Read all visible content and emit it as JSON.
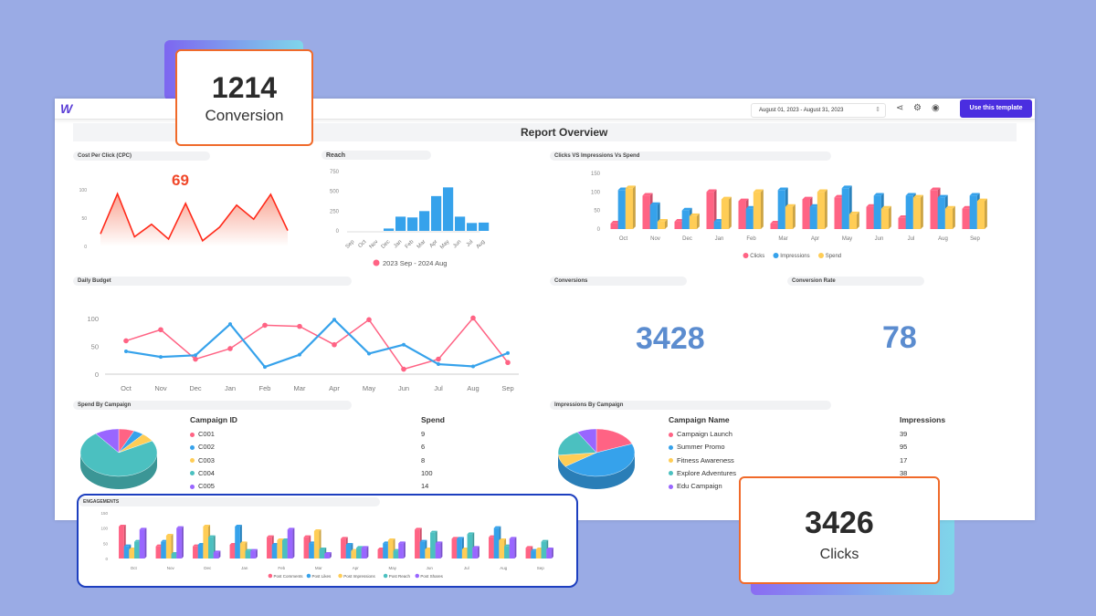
{
  "header": {
    "logo": "W",
    "date_range": "August 01, 2023 - August 31, 2023",
    "use_template_label": "Use this template",
    "report_title": "Report Overview"
  },
  "icons": {
    "share": "share-icon",
    "settings": "gear-icon",
    "preview": "eye-icon",
    "date_chevron": "chevron-updown-icon"
  },
  "colors": {
    "background": "#9aabe5",
    "accent": "#4a2ee0",
    "red": "#ff5b7a",
    "blue": "#36a2eb",
    "yellow": "#ffcd56",
    "teal": "#4bc0c0",
    "purple": "#9966ff",
    "card_border": "#f06a2a",
    "metric": "#5b8ccf"
  },
  "cards": {
    "conversion": {
      "value": "1214",
      "label": "Conversion"
    },
    "clicks": {
      "value": "3426",
      "label": "Clicks"
    }
  },
  "cpc": {
    "title": "Cost Per Click (CPC)",
    "value": "69"
  },
  "conversions": {
    "title": "Conversions",
    "value": "3428"
  },
  "conversion_rate": {
    "title": "Conversion Rate",
    "value": "78"
  },
  "chart_data": [
    {
      "id": "cpc",
      "type": "area",
      "title": "Cost Per Click (CPC)",
      "yticks": [
        "0",
        "50",
        "100"
      ],
      "ylim": [
        0,
        100
      ],
      "values": [
        22,
        93,
        17,
        39,
        13,
        76,
        10,
        34,
        73,
        48,
        92,
        28
      ],
      "color": "#ff2a1a"
    },
    {
      "id": "reach",
      "type": "bar",
      "title": "Reach",
      "categories": [
        "Sep",
        "Oct",
        "Nov",
        "Dec",
        "Jan",
        "Feb",
        "Mar",
        "Apr",
        "May",
        "Jun",
        "Jul",
        "Aug"
      ],
      "values": [
        0,
        0,
        0,
        30,
        180,
        170,
        250,
        440,
        550,
        180,
        100,
        105
      ],
      "yticks": [
        "0",
        "250",
        "500",
        "750"
      ],
      "ylim": [
        0,
        750
      ],
      "legend": "2023 Sep - 2024 Aug",
      "color": "#36a2eb"
    },
    {
      "id": "civs",
      "type": "bar",
      "title": "Clicks VS Impressions Vs Spend",
      "categories": [
        "Oct",
        "Nov",
        "Dec",
        "Jan",
        "Feb",
        "Mar",
        "Apr",
        "May",
        "Jun",
        "Jul",
        "Aug",
        "Sep"
      ],
      "yticks": [
        "0",
        "50",
        "100",
        "150"
      ],
      "ylim": [
        0,
        150
      ],
      "series": [
        {
          "name": "Clicks",
          "color": "#ff6384",
          "values": [
            15,
            90,
            20,
            100,
            75,
            15,
            80,
            85,
            60,
            30,
            105,
            55
          ]
        },
        {
          "name": "Impressions",
          "color": "#36a2eb",
          "values": [
            105,
            65,
            50,
            20,
            55,
            105,
            60,
            110,
            90,
            90,
            85,
            90
          ]
        },
        {
          "name": "Spend",
          "color": "#ffcd56",
          "values": [
            110,
            20,
            35,
            80,
            100,
            60,
            100,
            40,
            55,
            85,
            55,
            75
          ]
        }
      ]
    },
    {
      "id": "budget",
      "type": "line",
      "title": "Daily Budget",
      "categories": [
        "Oct",
        "Nov",
        "Dec",
        "Jan",
        "Feb",
        "Mar",
        "Apr",
        "May",
        "Jun",
        "Jul",
        "Aug",
        "Sep"
      ],
      "yticks": [
        "0",
        "50",
        "100"
      ],
      "ylim": [
        0,
        110
      ],
      "series": [
        {
          "color": "#ff6384",
          "values": [
            60,
            80,
            27,
            46,
            88,
            86,
            53,
            98,
            9,
            27,
            101,
            21
          ]
        },
        {
          "color": "#36a2eb",
          "values": [
            41,
            31,
            34,
            90,
            13,
            35,
            98,
            37,
            53,
            18,
            14,
            38
          ]
        }
      ]
    },
    {
      "id": "spend_pie",
      "type": "pie",
      "title": "Spend By Campaign",
      "headers": [
        "Campaign ID",
        "Spend"
      ],
      "labels": [
        "C001",
        "C002",
        "C003",
        "C004",
        "C005"
      ],
      "values": [
        9,
        6,
        8,
        100,
        14
      ],
      "display_values": [
        "9",
        "6",
        "8",
        "100",
        "14"
      ],
      "colors": [
        "#ff6384",
        "#36a2eb",
        "#ffcd56",
        "#4bc0c0",
        "#9966ff"
      ]
    },
    {
      "id": "imp_pie",
      "type": "pie",
      "title": "Impressions By Campaign",
      "headers": [
        "Campaign Name",
        "Impressions"
      ],
      "labels": [
        "Campaign Launch",
        "Summer Promo",
        "Fitness Awareness",
        "Explore Adventures",
        "Edu Campaign"
      ],
      "values": [
        39,
        95,
        17,
        38,
        17
      ],
      "display_values": [
        "39",
        "95",
        "17",
        "38",
        ""
      ],
      "colors": [
        "#ff6384",
        "#36a2eb",
        "#ffcd56",
        "#4bc0c0",
        "#9966ff"
      ]
    },
    {
      "id": "eng",
      "type": "bar",
      "title": "ENGAGEMENTS",
      "categories": [
        "Oct",
        "Nov",
        "Dec",
        "Jan",
        "Feb",
        "Mar",
        "Apr",
        "May",
        "Jun",
        "Jul",
        "Aug",
        "Sep"
      ],
      "yticks": [
        "0",
        "50",
        "100",
        "150"
      ],
      "ylim": [
        0,
        150
      ],
      "series": [
        {
          "name": "Post Comments",
          "color": "#ff6384",
          "values": [
            105,
            40,
            40,
            45,
            70,
            70,
            65,
            30,
            95,
            65,
            70,
            35
          ]
        },
        {
          "name": "Post Likes",
          "color": "#36a2eb",
          "values": [
            40,
            55,
            45,
            105,
            45,
            50,
            45,
            50,
            55,
            65,
            100,
            25
          ]
        },
        {
          "name": "Post Impressions",
          "color": "#ffcd56",
          "values": [
            30,
            75,
            105,
            50,
            60,
            90,
            25,
            60,
            30,
            30,
            60,
            30
          ]
        },
        {
          "name": "Post Reach",
          "color": "#4bc0c0",
          "values": [
            55,
            15,
            70,
            25,
            60,
            30,
            35,
            25,
            85,
            80,
            40,
            55
          ]
        },
        {
          "name": "Post Shares",
          "color": "#9966ff",
          "values": [
            95,
            100,
            20,
            25,
            95,
            15,
            35,
            50,
            50,
            35,
            65,
            30
          ]
        }
      ]
    }
  ]
}
